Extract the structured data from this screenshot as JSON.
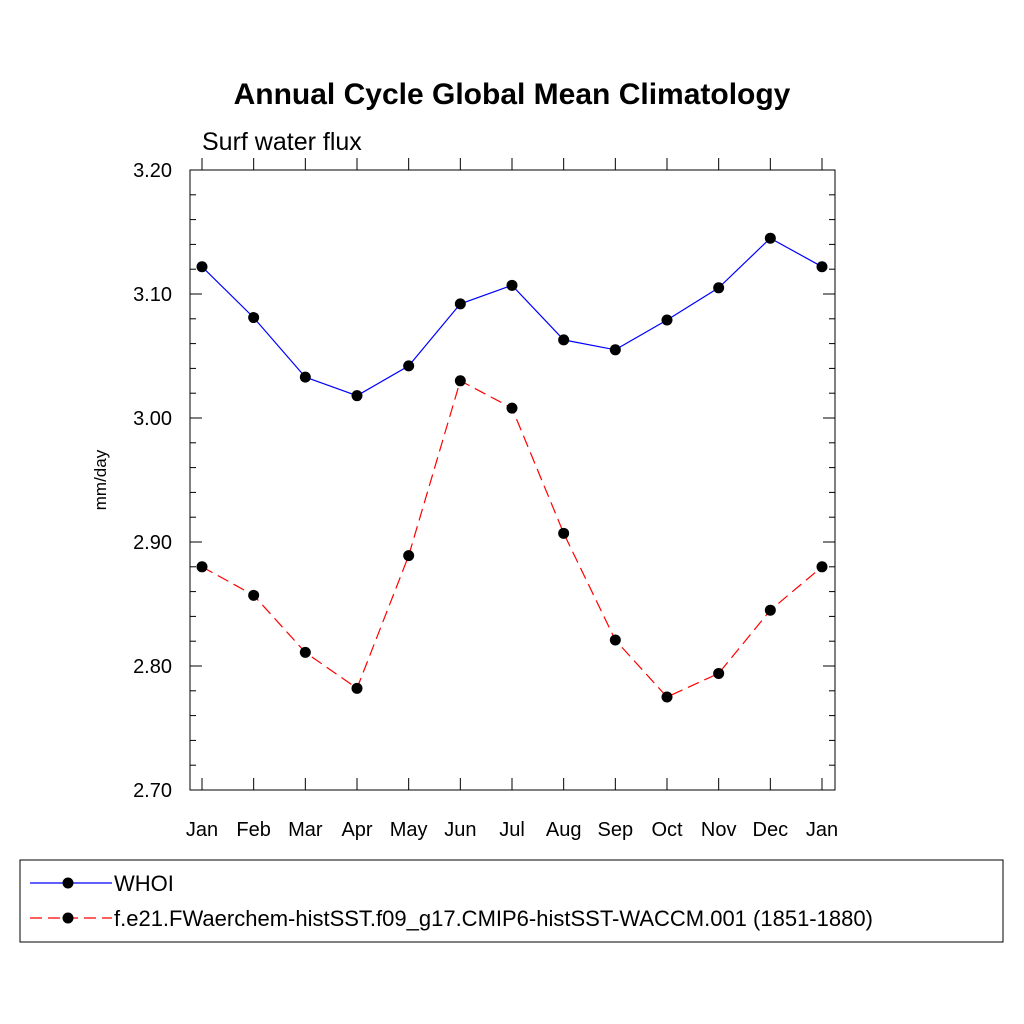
{
  "chart_data": {
    "type": "line",
    "title": "Annual Cycle Global Mean Climatology",
    "subtitle": "Surf water flux",
    "xlabel": "",
    "ylabel": "mm/day",
    "ylim": [
      2.7,
      3.2
    ],
    "y_ticks": [
      "2.70",
      "2.80",
      "2.90",
      "3.00",
      "3.10",
      "3.20"
    ],
    "y_tick_values": [
      2.7,
      2.8,
      2.9,
      3.0,
      3.1,
      3.2
    ],
    "categories": [
      "Jan",
      "Feb",
      "Mar",
      "Apr",
      "May",
      "Jun",
      "Jul",
      "Aug",
      "Sep",
      "Oct",
      "Nov",
      "Dec",
      "Jan"
    ],
    "grid": false,
    "legend_position": "bottom",
    "series": [
      {
        "name": "WHOI",
        "color": "#0000ff",
        "dash": "solid",
        "marker": "filled-circle",
        "values": [
          3.122,
          3.081,
          3.033,
          3.018,
          3.042,
          3.092,
          3.107,
          3.063,
          3.055,
          3.079,
          3.105,
          3.145,
          3.122
        ]
      },
      {
        "name": "f.e21.FWaerchem-histSST.f09_g17.CMIP6-histSST-WACCM.001 (1851-1880)",
        "color": "#ff0000",
        "dash": "dashed",
        "marker": "filled-circle",
        "values": [
          2.88,
          2.857,
          2.811,
          2.782,
          2.889,
          3.03,
          3.008,
          2.907,
          2.821,
          2.775,
          2.794,
          2.845,
          2.88
        ]
      }
    ]
  }
}
